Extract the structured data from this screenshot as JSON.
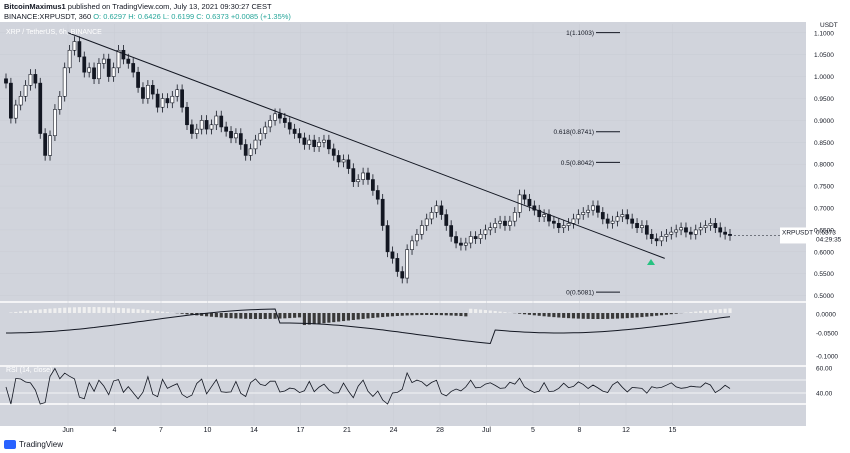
{
  "header": {
    "author": "BitcoinMaximus1",
    "published": "published on TradingView.com, July 13, 2021 09:30:27 CEST",
    "symbol_line": "BINANCE:XRPUSDT, 360",
    "open": "O: 0.6297",
    "high": "H: 0.6426",
    "low": "L: 0.6199",
    "close": "C: 0.6373",
    "change": "+0.0085 (+1.35%)"
  },
  "pane_title": "XRP / TetherUS, 6h, BINANCE",
  "price_tag": {
    "symbol": "XRPUSDT",
    "value": "0.6373",
    "timer": "04:29:35"
  },
  "fib_labels": [
    "1(1.1003)",
    "0.618(0.8741)",
    "0.5(0.8042)",
    "0(0.5081)"
  ],
  "x_ticks": [
    "Jun",
    "4",
    "7",
    "10",
    "14",
    "17",
    "21",
    "24",
    "28",
    "Jul",
    "5",
    "8",
    "12",
    "15"
  ],
  "rsi_label": "RSI (14, close)",
  "brand": "TradingView",
  "colors": {
    "background": "#d1d4dc",
    "candle_up": "#ffffff",
    "candle_down": "#131722",
    "arrow": "#26c281",
    "trendline": "#131722"
  },
  "chart_data": {
    "type": "candlestick",
    "price_axis": {
      "ticks": [
        "1.1000",
        "1.0500",
        "1.0000",
        "0.9500",
        "0.9000",
        "0.8500",
        "0.8000",
        "0.7500",
        "0.7000",
        "0.6500",
        "0.6000",
        "0.5500",
        "0.5000"
      ],
      "unit": "USDT",
      "range": [
        0.49,
        1.12
      ]
    },
    "close_series": [
      0.985,
      0.905,
      0.935,
      0.955,
      0.98,
      1.005,
      0.985,
      0.87,
      0.82,
      0.865,
      0.925,
      0.955,
      1.02,
      1.06,
      1.08,
      1.045,
      1.01,
      1.02,
      0.995,
      1.03,
      1.04,
      1.0,
      1.02,
      1.06,
      1.04,
      1.03,
      1.01,
      0.975,
      0.95,
      0.98,
      0.96,
      0.93,
      0.95,
      0.94,
      0.955,
      0.97,
      0.93,
      0.89,
      0.87,
      0.88,
      0.9,
      0.88,
      0.89,
      0.91,
      0.885,
      0.875,
      0.86,
      0.87,
      0.845,
      0.82,
      0.835,
      0.855,
      0.87,
      0.885,
      0.9,
      0.915,
      0.905,
      0.895,
      0.88,
      0.87,
      0.86,
      0.845,
      0.855,
      0.84,
      0.85,
      0.855,
      0.835,
      0.82,
      0.805,
      0.81,
      0.79,
      0.76,
      0.765,
      0.78,
      0.765,
      0.74,
      0.72,
      0.66,
      0.6,
      0.585,
      0.555,
      0.54,
      0.605,
      0.625,
      0.64,
      0.66,
      0.675,
      0.69,
      0.705,
      0.685,
      0.66,
      0.635,
      0.62,
      0.615,
      0.62,
      0.635,
      0.63,
      0.64,
      0.65,
      0.655,
      0.665,
      0.67,
      0.66,
      0.67,
      0.69,
      0.73,
      0.72,
      0.705,
      0.695,
      0.68,
      0.685,
      0.67,
      0.665,
      0.655,
      0.66,
      0.665,
      0.675,
      0.685,
      0.69,
      0.695,
      0.705,
      0.69,
      0.675,
      0.665,
      0.67,
      0.68,
      0.685,
      0.675,
      0.665,
      0.655,
      0.66,
      0.64,
      0.63,
      0.625,
      0.635,
      0.64,
      0.645,
      0.65,
      0.655,
      0.645,
      0.64,
      0.65,
      0.655,
      0.66,
      0.665,
      0.655,
      0.645,
      0.64,
      0.6373
    ],
    "last_price": 0.6373,
    "fib_levels": [
      {
        "label": "1(1.1003)",
        "price": 1.1003
      },
      {
        "label": "0.618(0.8741)",
        "price": 0.8741
      },
      {
        "label": "0.5(0.8042)",
        "price": 0.8042
      },
      {
        "label": "0(0.5081)",
        "price": 0.5081
      }
    ],
    "trendline": {
      "from": {
        "date": "Jun 1",
        "price": 1.1
      },
      "to": {
        "date": "Jul 9",
        "price": 0.585
      }
    },
    "macd_axis": {
      "ticks": [
        "0.0000",
        "-0.0500",
        "-0.1000"
      ]
    },
    "rsi": {
      "ticks": [
        "60.00",
        "40.00"
      ]
    },
    "grid": true
  }
}
